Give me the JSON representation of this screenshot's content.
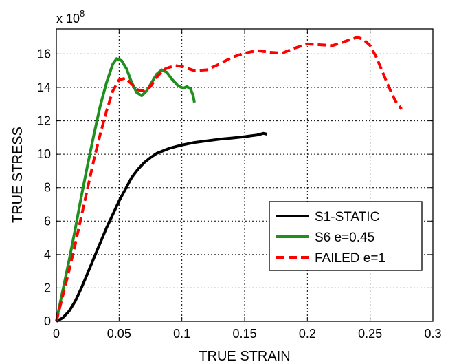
{
  "chart_data": {
    "type": "line",
    "xlabel": "TRUE STRAIN",
    "ylabel": "TRUE STRESS",
    "y_multiplier_label": "x 10",
    "y_multiplier_exponent": "8",
    "xlim": [
      0,
      0.3
    ],
    "ylim": [
      0,
      17.5
    ],
    "x_ticks": [
      0,
      0.05,
      0.1,
      0.15,
      0.2,
      0.25,
      0.3
    ],
    "x_tick_labels": [
      "0",
      "0.05",
      "0.1",
      "0.15",
      "0.2",
      "0.25",
      "0.3"
    ],
    "y_ticks": [
      0,
      2,
      4,
      6,
      8,
      10,
      12,
      14,
      16
    ],
    "y_tick_labels": [
      "0",
      "2",
      "4",
      "6",
      "8",
      "10",
      "12",
      "14",
      "16"
    ],
    "grid": true,
    "legend_position": "lower-right",
    "series": [
      {
        "name": "S1-STATIC",
        "color": "#000000",
        "style": "solid",
        "points": [
          [
            0,
            0
          ],
          [
            0.005,
            0.2
          ],
          [
            0.01,
            0.6
          ],
          [
            0.015,
            1.2
          ],
          [
            0.02,
            2.0
          ],
          [
            0.025,
            2.9
          ],
          [
            0.03,
            3.8
          ],
          [
            0.035,
            4.7
          ],
          [
            0.04,
            5.6
          ],
          [
            0.045,
            6.4
          ],
          [
            0.05,
            7.2
          ],
          [
            0.055,
            7.9
          ],
          [
            0.06,
            8.6
          ],
          [
            0.065,
            9.1
          ],
          [
            0.07,
            9.5
          ],
          [
            0.075,
            9.8
          ],
          [
            0.08,
            10.05
          ],
          [
            0.09,
            10.35
          ],
          [
            0.1,
            10.55
          ],
          [
            0.11,
            10.7
          ],
          [
            0.12,
            10.8
          ],
          [
            0.13,
            10.9
          ],
          [
            0.14,
            10.97
          ],
          [
            0.15,
            11.05
          ],
          [
            0.16,
            11.15
          ],
          [
            0.165,
            11.25
          ],
          [
            0.168,
            11.2
          ]
        ]
      },
      {
        "name": "S6 e=0.45",
        "color": "#1f8f1f",
        "style": "solid",
        "points": [
          [
            0,
            0
          ],
          [
            0.005,
            1.8
          ],
          [
            0.01,
            3.6
          ],
          [
            0.015,
            5.5
          ],
          [
            0.02,
            7.5
          ],
          [
            0.025,
            9.4
          ],
          [
            0.03,
            11.2
          ],
          [
            0.035,
            12.9
          ],
          [
            0.04,
            14.3
          ],
          [
            0.045,
            15.4
          ],
          [
            0.048,
            15.72
          ],
          [
            0.052,
            15.6
          ],
          [
            0.056,
            15.1
          ],
          [
            0.06,
            14.3
          ],
          [
            0.064,
            13.7
          ],
          [
            0.068,
            13.5
          ],
          [
            0.072,
            13.8
          ],
          [
            0.076,
            14.3
          ],
          [
            0.08,
            14.8
          ],
          [
            0.084,
            15.05
          ],
          [
            0.088,
            14.9
          ],
          [
            0.092,
            14.5
          ],
          [
            0.097,
            14.1
          ],
          [
            0.101,
            13.95
          ],
          [
            0.104,
            14.05
          ],
          [
            0.107,
            13.9
          ],
          [
            0.109,
            13.5
          ],
          [
            0.11,
            13.1
          ]
        ]
      },
      {
        "name": "FAILED e=1",
        "color": "#ff0000",
        "style": "dashed",
        "points": [
          [
            0,
            0
          ],
          [
            0.005,
            1.5
          ],
          [
            0.01,
            3.0
          ],
          [
            0.015,
            4.6
          ],
          [
            0.02,
            6.3
          ],
          [
            0.025,
            8.0
          ],
          [
            0.03,
            9.7
          ],
          [
            0.035,
            11.2
          ],
          [
            0.04,
            12.6
          ],
          [
            0.045,
            13.8
          ],
          [
            0.05,
            14.45
          ],
          [
            0.055,
            14.55
          ],
          [
            0.06,
            14.2
          ],
          [
            0.065,
            13.85
          ],
          [
            0.07,
            13.8
          ],
          [
            0.075,
            14.05
          ],
          [
            0.08,
            14.6
          ],
          [
            0.085,
            15.05
          ],
          [
            0.09,
            15.2
          ],
          [
            0.095,
            15.3
          ],
          [
            0.1,
            15.25
          ],
          [
            0.11,
            15.0
          ],
          [
            0.12,
            15.05
          ],
          [
            0.13,
            15.4
          ],
          [
            0.14,
            15.8
          ],
          [
            0.15,
            16.05
          ],
          [
            0.16,
            16.2
          ],
          [
            0.17,
            16.1
          ],
          [
            0.18,
            16.05
          ],
          [
            0.19,
            16.35
          ],
          [
            0.2,
            16.6
          ],
          [
            0.21,
            16.55
          ],
          [
            0.22,
            16.5
          ],
          [
            0.23,
            16.75
          ],
          [
            0.24,
            17.0
          ],
          [
            0.245,
            16.85
          ],
          [
            0.25,
            16.5
          ],
          [
            0.255,
            15.8
          ],
          [
            0.26,
            14.9
          ],
          [
            0.265,
            14.0
          ],
          [
            0.27,
            13.2
          ],
          [
            0.275,
            12.7
          ]
        ]
      }
    ]
  }
}
